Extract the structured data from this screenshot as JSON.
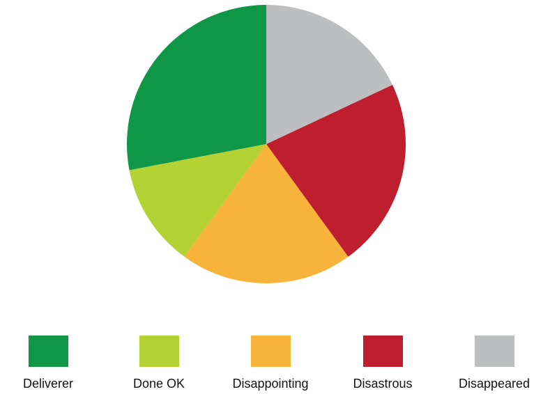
{
  "chart_data": {
    "type": "pie",
    "title": "",
    "categories": [
      "Deliverer",
      "Done OK",
      "Disappointing",
      "Disastrous",
      "Disappeared"
    ],
    "values": [
      28,
      12,
      20,
      22,
      18
    ],
    "colors": [
      "#0f9647",
      "#b5d234",
      "#f8b43a",
      "#be1e2d",
      "#bcbec0"
    ],
    "start_angle_deg": 0,
    "direction": "counterclockwise",
    "legend_placement": "bottom"
  }
}
